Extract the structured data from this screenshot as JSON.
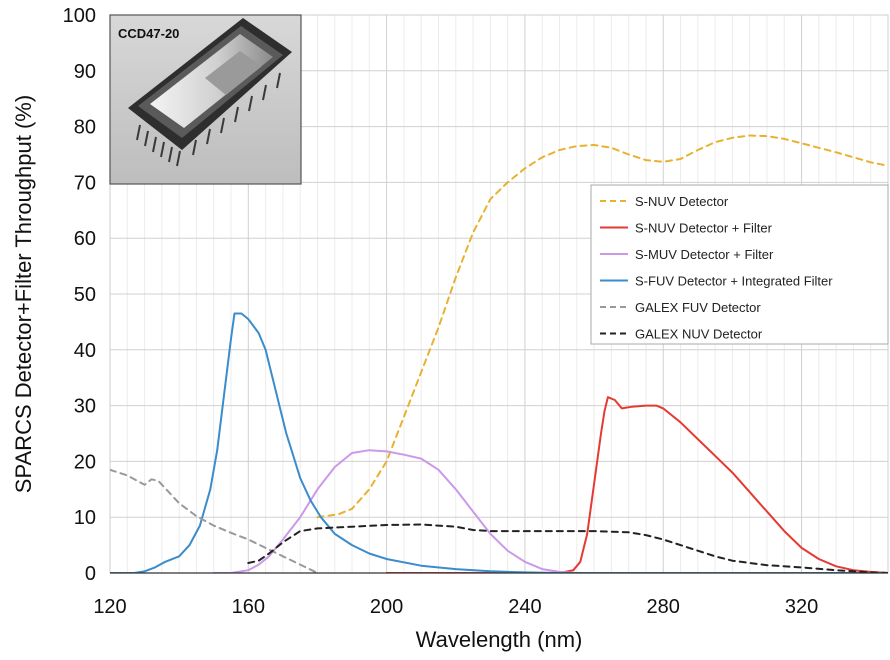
{
  "chart_data": {
    "type": "line",
    "xlabel": "Wavelength (nm)",
    "ylabel": "SPARCS Detector+Filter Throughput (%)",
    "xlim": [
      120,
      345
    ],
    "ylim": [
      0,
      100
    ],
    "xticks": [
      120,
      160,
      200,
      240,
      280,
      320
    ],
    "yticks": [
      0,
      10,
      20,
      30,
      40,
      50,
      60,
      70,
      80,
      90,
      100
    ],
    "grid": true,
    "legend_position": "right",
    "inset_label": "CCD47-20",
    "series": [
      {
        "name": "S-NUV Detector",
        "color": "#E8B230",
        "dash": "dashed",
        "points": [
          [
            180,
            10
          ],
          [
            186,
            10.5
          ],
          [
            190,
            11.5
          ],
          [
            195,
            15
          ],
          [
            200,
            20
          ],
          [
            205,
            28
          ],
          [
            210,
            36
          ],
          [
            215,
            44
          ],
          [
            220,
            53
          ],
          [
            225,
            61
          ],
          [
            230,
            67
          ],
          [
            235,
            70
          ],
          [
            240,
            72.5
          ],
          [
            245,
            74.5
          ],
          [
            250,
            75.8
          ],
          [
            255,
            76.5
          ],
          [
            260,
            76.7
          ],
          [
            265,
            76.2
          ],
          [
            270,
            75
          ],
          [
            275,
            74
          ],
          [
            280,
            73.7
          ],
          [
            285,
            74.2
          ],
          [
            290,
            75.8
          ],
          [
            295,
            77.2
          ],
          [
            300,
            78
          ],
          [
            305,
            78.4
          ],
          [
            310,
            78.3
          ],
          [
            315,
            77.8
          ],
          [
            320,
            77
          ],
          [
            325,
            76.2
          ],
          [
            330,
            75.4
          ],
          [
            335,
            74.5
          ],
          [
            340,
            73.6
          ],
          [
            345,
            73
          ]
        ]
      },
      {
        "name": "S-NUV Detector + Filter",
        "color": "#E53A33",
        "dash": "solid",
        "points": [
          [
            200,
            0
          ],
          [
            250,
            0
          ],
          [
            254,
            0.5
          ],
          [
            256,
            2
          ],
          [
            258,
            7
          ],
          [
            260,
            16
          ],
          [
            262,
            25
          ],
          [
            263,
            29
          ],
          [
            264,
            31.5
          ],
          [
            266,
            31
          ],
          [
            268,
            29.5
          ],
          [
            271,
            29.8
          ],
          [
            275,
            30
          ],
          [
            278,
            30
          ],
          [
            280,
            29.5
          ],
          [
            285,
            27
          ],
          [
            290,
            24
          ],
          [
            295,
            21
          ],
          [
            300,
            18
          ],
          [
            305,
            14.5
          ],
          [
            310,
            11
          ],
          [
            315,
            7.5
          ],
          [
            320,
            4.5
          ],
          [
            325,
            2.5
          ],
          [
            330,
            1.2
          ],
          [
            335,
            0.5
          ],
          [
            340,
            0.2
          ],
          [
            345,
            0
          ]
        ]
      },
      {
        "name": "S-MUV Detector + Filter",
        "color": "#CC99E8",
        "dash": "solid",
        "points": [
          [
            150,
            0
          ],
          [
            155,
            0
          ],
          [
            160,
            0.5
          ],
          [
            163,
            1.5
          ],
          [
            166,
            3
          ],
          [
            170,
            6
          ],
          [
            175,
            10
          ],
          [
            180,
            15
          ],
          [
            185,
            19
          ],
          [
            190,
            21.5
          ],
          [
            195,
            22
          ],
          [
            200,
            21.8
          ],
          [
            205,
            21.2
          ],
          [
            210,
            20.5
          ],
          [
            215,
            18.5
          ],
          [
            220,
            15
          ],
          [
            225,
            11
          ],
          [
            230,
            7
          ],
          [
            235,
            4
          ],
          [
            240,
            2
          ],
          [
            245,
            0.7
          ],
          [
            250,
            0.2
          ],
          [
            255,
            0
          ]
        ]
      },
      {
        "name": "S-FUV Detector + Integrated Filter",
        "color": "#3A8CCB",
        "dash": "solid",
        "points": [
          [
            120,
            0
          ],
          [
            127,
            0
          ],
          [
            130,
            0.3
          ],
          [
            133,
            1
          ],
          [
            136,
            2
          ],
          [
            140,
            3
          ],
          [
            143,
            5
          ],
          [
            146,
            8.5
          ],
          [
            149,
            15
          ],
          [
            151,
            22
          ],
          [
            153,
            32
          ],
          [
            155,
            42
          ],
          [
            156,
            46.5
          ],
          [
            158,
            46.5
          ],
          [
            160,
            45.5
          ],
          [
            163,
            43
          ],
          [
            165,
            40
          ],
          [
            167,
            35
          ],
          [
            169,
            30
          ],
          [
            171,
            25
          ],
          [
            173,
            21
          ],
          [
            175,
            17
          ],
          [
            178,
            13
          ],
          [
            181,
            10
          ],
          [
            185,
            7
          ],
          [
            190,
            5
          ],
          [
            195,
            3.5
          ],
          [
            200,
            2.5
          ],
          [
            210,
            1.3
          ],
          [
            220,
            0.7
          ],
          [
            230,
            0.3
          ],
          [
            240,
            0.1
          ],
          [
            250,
            0
          ],
          [
            345,
            0
          ]
        ]
      },
      {
        "name": "GALEX FUV Detector",
        "color": "#999999",
        "dash": "dashed",
        "points": [
          [
            120,
            18.5
          ],
          [
            125,
            17.5
          ],
          [
            130,
            15.8
          ],
          [
            132,
            16.8
          ],
          [
            134,
            16.5
          ],
          [
            137,
            14.5
          ],
          [
            140,
            12.5
          ],
          [
            145,
            10.2
          ],
          [
            150,
            8.5
          ],
          [
            155,
            7.2
          ],
          [
            160,
            6
          ],
          [
            165,
            4.5
          ],
          [
            170,
            3
          ],
          [
            175,
            1.5
          ],
          [
            180,
            0
          ]
        ]
      },
      {
        "name": "GALEX NUV Detector",
        "color": "#222222",
        "dash": "dashed",
        "points": [
          [
            160,
            1.8
          ],
          [
            163,
            2.2
          ],
          [
            166,
            3.5
          ],
          [
            170,
            5.5
          ],
          [
            175,
            7.5
          ],
          [
            180,
            8
          ],
          [
            190,
            8.3
          ],
          [
            200,
            8.6
          ],
          [
            210,
            8.7
          ],
          [
            220,
            8.3
          ],
          [
            225,
            7.7
          ],
          [
            230,
            7.5
          ],
          [
            240,
            7.5
          ],
          [
            250,
            7.5
          ],
          [
            260,
            7.5
          ],
          [
            270,
            7.3
          ],
          [
            275,
            6.8
          ],
          [
            280,
            6
          ],
          [
            285,
            5
          ],
          [
            290,
            4
          ],
          [
            295,
            3
          ],
          [
            300,
            2.2
          ],
          [
            310,
            1.4
          ],
          [
            320,
            1
          ],
          [
            330,
            0.5
          ],
          [
            340,
            0.1
          ],
          [
            345,
            0
          ]
        ]
      }
    ]
  }
}
